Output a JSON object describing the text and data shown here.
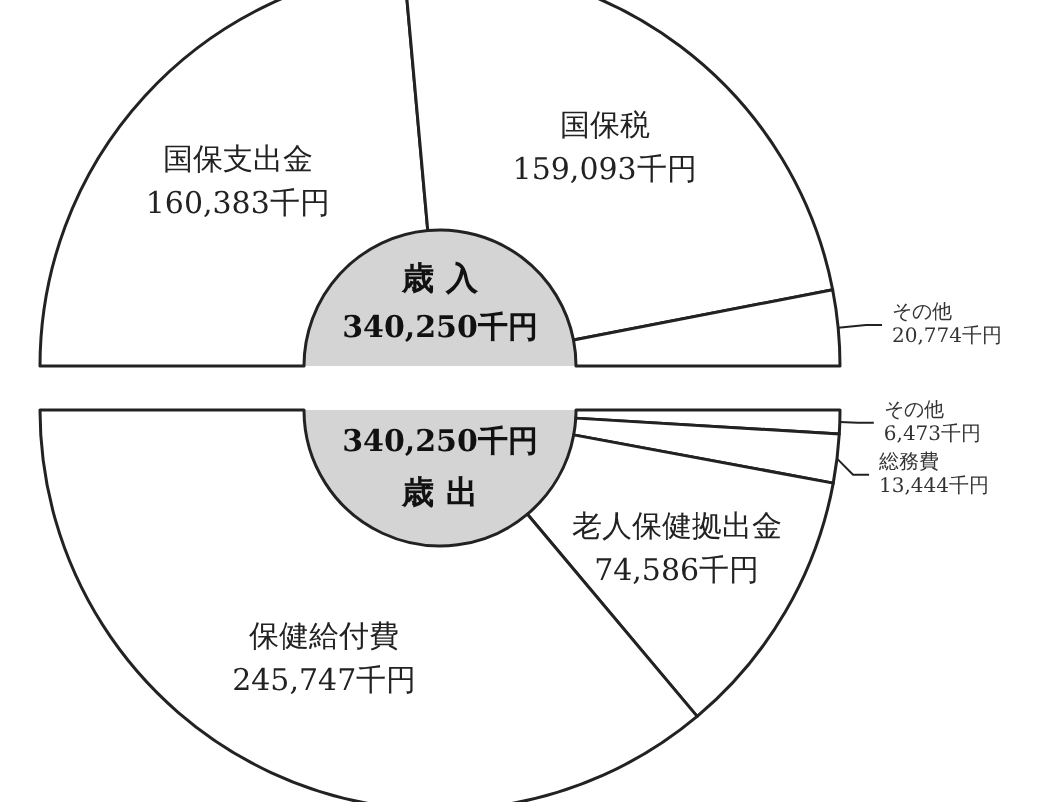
{
  "chart_data": [
    {
      "type": "donut",
      "title": "歳 入",
      "annotations": [
        "340,250千円"
      ],
      "categories": [
        "国保支出金",
        "国保税",
        "その他"
      ],
      "values": [
        160383,
        159093,
        20774
      ],
      "value_labels": [
        "160,383千円",
        "159,093千円",
        "20,774千円"
      ],
      "colors": [
        "#ffffff",
        "#ffffff",
        "#ffffff"
      ]
    },
    {
      "type": "donut",
      "title": "歳 出",
      "annotations": [
        "340,250千円"
      ],
      "categories": [
        "その他",
        "総務費",
        "老人保健拠出金",
        "保健給付費"
      ],
      "values": [
        6473,
        13444,
        74586,
        245747
      ],
      "value_labels": [
        "6,473千円",
        "13,444千円",
        "74,586千円",
        "245,747千円"
      ],
      "colors": [
        "#ffffff",
        "#ffffff",
        "#ffffff",
        "#ffffff"
      ]
    }
  ]
}
